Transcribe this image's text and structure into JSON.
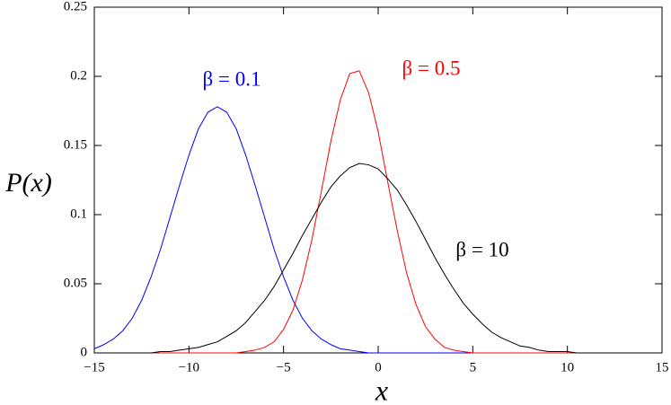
{
  "chart_data": {
    "type": "line",
    "xlabel": "x",
    "ylabel": "P(x)",
    "x": [
      -15,
      -14.5,
      -14,
      -13.5,
      -13,
      -12.5,
      -12,
      -11.5,
      -11,
      -10.5,
      -10,
      -9.5,
      -9,
      -8.5,
      -8,
      -7.5,
      -7,
      -6.5,
      -6,
      -5.5,
      -5,
      -4.5,
      -4,
      -3.5,
      -3,
      -2.5,
      -2,
      -1.5,
      -1,
      -0.5,
      0,
      0.5,
      1,
      1.5,
      2,
      2.5,
      3,
      3.5,
      4,
      4.5,
      5,
      5.5,
      6,
      6.5,
      7,
      7.5,
      8,
      8.5,
      9,
      9.5,
      10,
      10.5,
      11,
      11.5,
      12,
      12.5,
      13,
      13.5,
      14,
      14.5,
      15
    ],
    "series": [
      {
        "name": "β = 0.1",
        "color": "#0000ff",
        "values": [
          0.003,
          0.006,
          0.01,
          0.016,
          0.025,
          0.038,
          0.055,
          0.075,
          0.098,
          0.121,
          0.143,
          0.162,
          0.174,
          0.178,
          0.174,
          0.162,
          0.143,
          0.121,
          0.098,
          0.075,
          0.055,
          0.038,
          0.025,
          0.016,
          0.01,
          0.006,
          0.003,
          0.002,
          0.001,
          0,
          0,
          0,
          0,
          0,
          0,
          0,
          0,
          0,
          0,
          0,
          0,
          0,
          0,
          0,
          0,
          0,
          0,
          0,
          0,
          0,
          0,
          0,
          0,
          0,
          0,
          0,
          0,
          0,
          0,
          0,
          0
        ]
      },
      {
        "name": "β = 0.5",
        "color": "#ff0000",
        "values": [
          0,
          0,
          0,
          0,
          0,
          0,
          0,
          0,
          0,
          0,
          0,
          0,
          0,
          0,
          0,
          0,
          0.001,
          0.002,
          0.004,
          0.008,
          0.017,
          0.031,
          0.053,
          0.082,
          0.117,
          0.153,
          0.183,
          0.202,
          0.204,
          0.188,
          0.16,
          0.124,
          0.089,
          0.058,
          0.035,
          0.019,
          0.01,
          0.004,
          0.002,
          0.001,
          0,
          0,
          0,
          0,
          0,
          0,
          0,
          0,
          0,
          0,
          0,
          0,
          0,
          0,
          0,
          0,
          0,
          0,
          0,
          0,
          0
        ]
      },
      {
        "name": "β = 10",
        "color": "#000000",
        "values": [
          0,
          0,
          0,
          0,
          0,
          0,
          0,
          0.001,
          0.001,
          0.002,
          0.003,
          0.004,
          0.006,
          0.008,
          0.012,
          0.016,
          0.022,
          0.03,
          0.038,
          0.048,
          0.06,
          0.072,
          0.085,
          0.097,
          0.109,
          0.12,
          0.128,
          0.134,
          0.137,
          0.136,
          0.133,
          0.126,
          0.118,
          0.107,
          0.095,
          0.082,
          0.069,
          0.057,
          0.046,
          0.036,
          0.028,
          0.021,
          0.015,
          0.011,
          0.008,
          0.005,
          0.004,
          0.002,
          0.001,
          0.001,
          0.001,
          0,
          0,
          0,
          0,
          0,
          0,
          0,
          0,
          0,
          0
        ]
      }
    ],
    "xlim": [
      -15,
      15
    ],
    "xticks": [
      {
        "value": -15,
        "label": "−15"
      },
      {
        "value": -10,
        "label": "−10"
      },
      {
        "value": -5,
        "label": "−5"
      },
      0,
      5,
      10,
      15
    ],
    "ylim": [
      0,
      0.25
    ],
    "yticks": [
      0,
      0.05,
      0.1,
      0.15,
      0.2,
      0.25
    ],
    "grid": false
  }
}
